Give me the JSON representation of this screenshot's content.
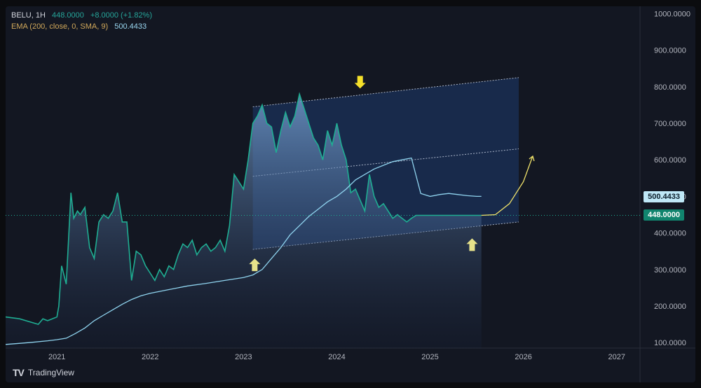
{
  "legend": {
    "symbol": "BELU, 1H",
    "price": "448.0000",
    "change": "+8.0000 (+1.82%)",
    "indicator": "EMA (200, close, 0, SMA, 9)",
    "indicator_value": "500.4433"
  },
  "tags": {
    "ema": "500.4433",
    "price": "448.0000"
  },
  "brand": "TradingView",
  "colors": {
    "price_line": "#1fae93",
    "ema_line": "#8fd3ee",
    "annotation_arrow": "#f0e26a",
    "channel_fill": "#1e3a6e",
    "price_tag": "#11846e",
    "ema_tag": "#bfe8f7"
  },
  "chart_data": {
    "type": "line",
    "x_unit": "year",
    "xlim": [
      2020.45,
      2027.25
    ],
    "ylim": [
      85,
      1020
    ],
    "x_ticks": [
      2021,
      2022,
      2023,
      2024,
      2025,
      2026,
      2027
    ],
    "y_ticks": [
      100,
      200,
      300,
      400,
      500,
      600,
      700,
      800,
      900,
      1000
    ],
    "y_tick_labels": [
      "100.0000",
      "200.0000",
      "300.0000",
      "400.0000",
      "500.0000",
      "600.0000",
      "700.0000",
      "800.0000",
      "900.0000",
      "1000.0000"
    ],
    "x_tick_labels": [
      "2021",
      "2022",
      "2023",
      "2024",
      "2025",
      "2026",
      "2027"
    ],
    "grid": false,
    "series": [
      {
        "name": "BELU",
        "x": [
          2020.45,
          2020.6,
          2020.8,
          2020.85,
          2020.9,
          2020.95,
          2021.0,
          2021.02,
          2021.05,
          2021.1,
          2021.15,
          2021.18,
          2021.22,
          2021.25,
          2021.3,
          2021.35,
          2021.4,
          2021.45,
          2021.5,
          2021.55,
          2021.6,
          2021.65,
          2021.7,
          2021.75,
          2021.8,
          2021.85,
          2021.9,
          2021.95,
          2022.0,
          2022.05,
          2022.1,
          2022.15,
          2022.2,
          2022.25,
          2022.3,
          2022.35,
          2022.4,
          2022.45,
          2022.5,
          2022.55,
          2022.6,
          2022.65,
          2022.7,
          2022.75,
          2022.8,
          2022.85,
          2022.9,
          2022.95,
          2023.0,
          2023.05,
          2023.1,
          2023.15,
          2023.2,
          2023.25,
          2023.3,
          2023.35,
          2023.4,
          2023.45,
          2023.5,
          2023.55,
          2023.6,
          2023.65,
          2023.7,
          2023.75,
          2023.8,
          2023.85,
          2023.9,
          2023.95,
          2024.0,
          2024.05,
          2024.1,
          2024.15,
          2024.2,
          2024.25,
          2024.3,
          2024.35,
          2024.4,
          2024.45,
          2024.5,
          2024.55,
          2024.6,
          2024.65,
          2024.7,
          2024.75,
          2024.8,
          2024.85,
          2024.9,
          2024.95,
          2025.0,
          2025.05,
          2025.1,
          2025.15,
          2025.2,
          2025.25,
          2025.3,
          2025.35,
          2025.4,
          2025.45,
          2025.5,
          2025.55
        ],
        "y": [
          170,
          165,
          150,
          165,
          160,
          165,
          170,
          200,
          310,
          260,
          510,
          440,
          460,
          450,
          470,
          360,
          330,
          430,
          450,
          440,
          460,
          510,
          430,
          430,
          270,
          350,
          340,
          310,
          290,
          270,
          300,
          280,
          310,
          300,
          340,
          370,
          360,
          380,
          340,
          360,
          370,
          350,
          360,
          380,
          350,
          420,
          560,
          540,
          520,
          600,
          700,
          720,
          750,
          700,
          690,
          620,
          680,
          730,
          690,
          720,
          780,
          740,
          700,
          660,
          640,
          600,
          680,
          640,
          700,
          640,
          600,
          510,
          520,
          490,
          460,
          560,
          500,
          470,
          480,
          460,
          440,
          450,
          440,
          430,
          440,
          448,
          448,
          448,
          448,
          448,
          448,
          448,
          448,
          448,
          448,
          448,
          448,
          448,
          448,
          448
        ]
      },
      {
        "name": "EMA (200, close, 0, SMA, 9)",
        "x": [
          2020.45,
          2020.7,
          2020.9,
          2021.0,
          2021.1,
          2021.2,
          2021.3,
          2021.4,
          2021.5,
          2021.6,
          2021.7,
          2021.8,
          2021.9,
          2022.0,
          2022.2,
          2022.4,
          2022.6,
          2022.8,
          2023.0,
          2023.1,
          2023.2,
          2023.3,
          2023.4,
          2023.5,
          2023.6,
          2023.7,
          2023.8,
          2023.9,
          2024.0,
          2024.1,
          2024.2,
          2024.3,
          2024.4,
          2024.5,
          2024.6,
          2024.7,
          2024.8,
          2024.9,
          2025.0,
          2025.1,
          2025.2,
          2025.3,
          2025.4,
          2025.5,
          2025.55
        ],
        "y": [
          95,
          100,
          105,
          108,
          112,
          125,
          140,
          160,
          175,
          190,
          205,
          218,
          228,
          235,
          245,
          255,
          262,
          270,
          278,
          285,
          300,
          330,
          360,
          395,
          420,
          445,
          465,
          485,
          500,
          520,
          545,
          560,
          575,
          585,
          595,
          600,
          605,
          508,
          500,
          505,
          508,
          505,
          502,
          500,
          500
        ]
      }
    ],
    "annotations": [
      {
        "type": "channel",
        "x": [
          2023.1,
          2025.95
        ],
        "lower": [
          355,
          430
        ],
        "mid": [
          555,
          630
        ],
        "upper": [
          745,
          825
        ]
      },
      {
        "type": "arrow_down",
        "x": 2024.25,
        "y": 795
      },
      {
        "type": "arrow_up",
        "x": 2023.12,
        "y": 330
      },
      {
        "type": "arrow_up",
        "x": 2025.45,
        "y": 385
      },
      {
        "type": "curve",
        "x": [
          2025.55,
          2025.7,
          2025.85,
          2026.0,
          2026.1
        ],
        "y": [
          448,
          450,
          480,
          540,
          610
        ]
      }
    ]
  }
}
